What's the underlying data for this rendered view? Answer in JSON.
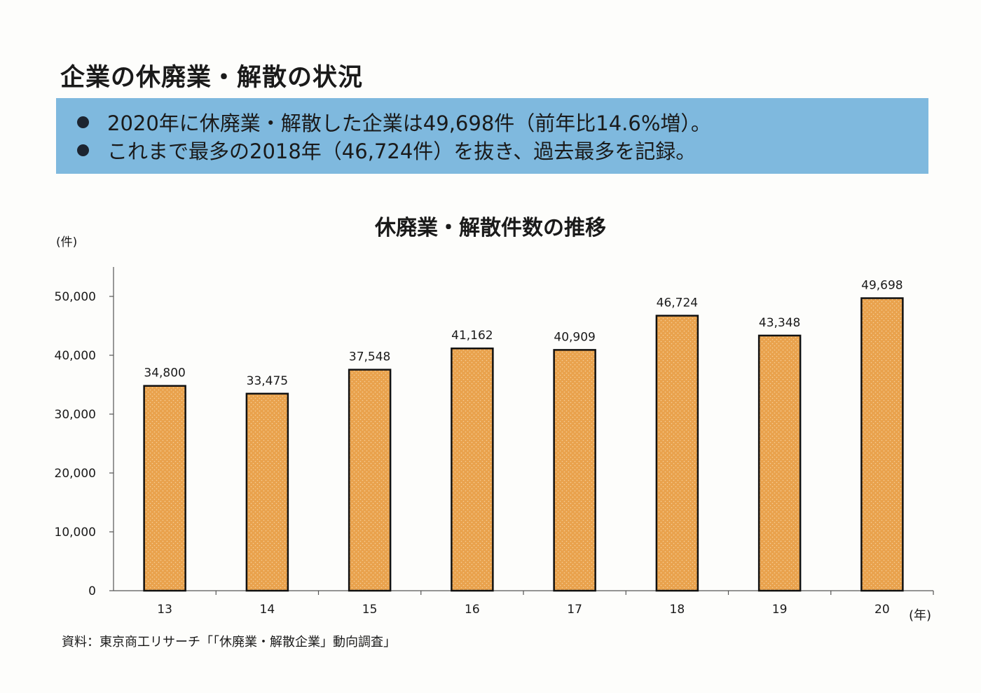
{
  "page": {
    "title": "企業の休廃業・解散の状況"
  },
  "summary": {
    "bullets": [
      "2020年に休廃業・解散した企業は49,698件（前年比14.6%増）。",
      "これまで最多の2018年（46,724件）を抜き、過去最多を記録。"
    ],
    "background_color": "#7fb9de"
  },
  "chart_data": {
    "type": "bar",
    "title": "休廃業・解散件数の推移",
    "ylabel": "(件)",
    "xlabel": "(年)",
    "categories": [
      "13",
      "14",
      "15",
      "16",
      "17",
      "18",
      "19",
      "20"
    ],
    "values": [
      34800,
      33475,
      37548,
      41162,
      40909,
      46724,
      43348,
      49698
    ],
    "value_labels": [
      "34,800",
      "33,475",
      "37,548",
      "41,162",
      "40,909",
      "46,724",
      "43,348",
      "49,698"
    ],
    "ylim": [
      0,
      55000
    ],
    "yticks": [
      0,
      10000,
      20000,
      30000,
      40000,
      50000
    ],
    "ytick_labels": [
      "0",
      "10,000",
      "20,000",
      "30,000",
      "40,000",
      "50,000"
    ],
    "grid": false,
    "bar_color": "#e9a24d",
    "bar_edge_color": "#111111"
  },
  "source": "資料：東京商工リサーチ「「休廃業・解散企業」動向調査」"
}
